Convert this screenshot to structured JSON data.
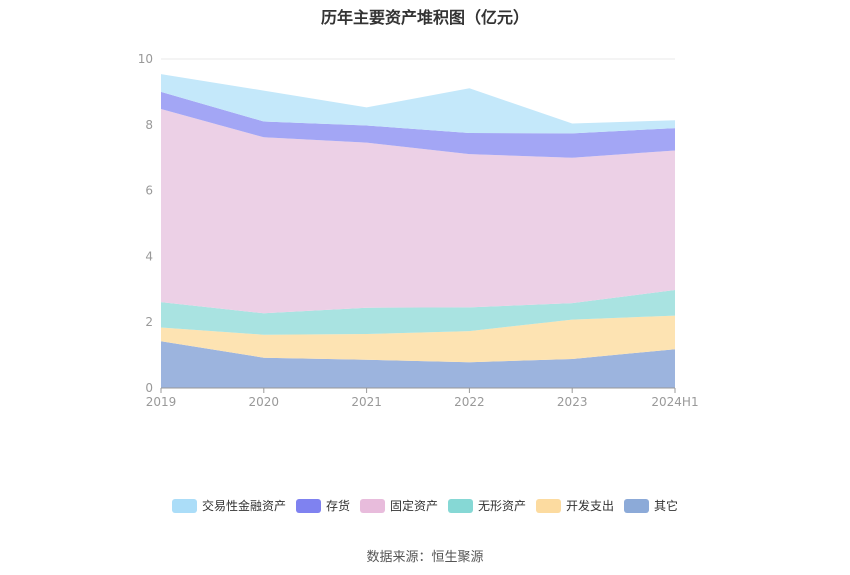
{
  "chart_data": {
    "type": "area",
    "stacked": true,
    "title": "历年主要资产堆积图（亿元）",
    "categories": [
      "2019",
      "2020",
      "2021",
      "2022",
      "2023",
      "2024H1"
    ],
    "ylim": [
      0,
      10
    ],
    "yticks": [
      "0",
      "2",
      "4",
      "6",
      "8",
      "10"
    ],
    "grid": true,
    "legend_position": "bottom",
    "series": [
      {
        "name": "其它",
        "color": "#9cb4de",
        "values": [
          1.42,
          0.92,
          0.86,
          0.78,
          0.88,
          1.18
        ]
      },
      {
        "name": "开发支出",
        "color": "#fde3b2",
        "values": [
          0.42,
          0.7,
          0.78,
          0.95,
          1.2,
          1.02
        ]
      },
      {
        "name": "无形资产",
        "color": "#a9e3e1",
        "values": [
          0.77,
          0.65,
          0.8,
          0.72,
          0.5,
          0.78
        ]
      },
      {
        "name": "固定资产",
        "color": "#ecd0e6",
        "values": [
          5.87,
          5.35,
          5.02,
          4.66,
          4.42,
          4.24
        ]
      },
      {
        "name": "存货",
        "color": "#a3a6f5",
        "values": [
          0.52,
          0.48,
          0.52,
          0.64,
          0.74,
          0.68
        ]
      },
      {
        "name": "交易性金融资产",
        "color": "#c4e8fa",
        "values": [
          0.54,
          0.94,
          0.55,
          1.36,
          0.3,
          0.24
        ]
      }
    ]
  },
  "legend": [
    {
      "name": "交易性金融资产",
      "color": "#abddf8"
    },
    {
      "name": "存货",
      "color": "#7f82f0"
    },
    {
      "name": "固定资产",
      "color": "#e8bcdc"
    },
    {
      "name": "无形资产",
      "color": "#86d8d5"
    },
    {
      "name": "开发支出",
      "color": "#fcdba0"
    },
    {
      "name": "其它",
      "color": "#8caad8"
    }
  ],
  "source": "数据来源：恒生聚源"
}
